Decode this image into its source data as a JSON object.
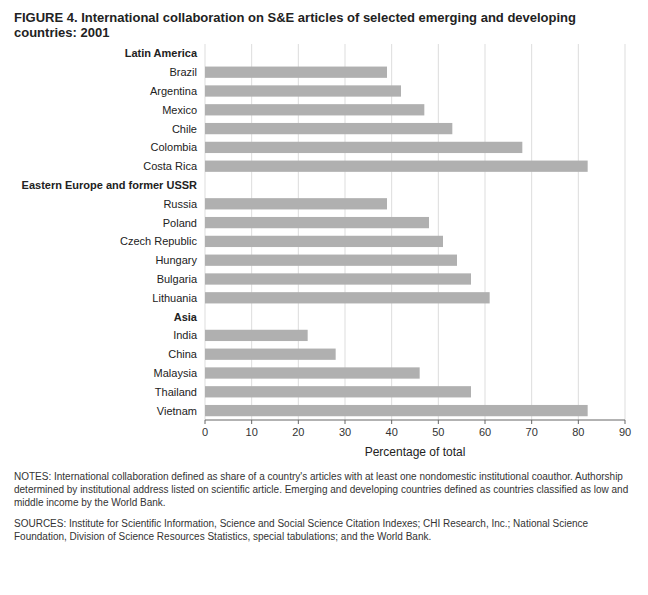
{
  "chart_data": {
    "type": "bar",
    "orientation": "horizontal",
    "title": "FIGURE 4. International collaboration on S&E articles of selected emerging and developing countries:  2001",
    "x_label": "Percentage of total",
    "categories": [
      "Latin America",
      "Brazil",
      "Argentina",
      "Mexico",
      "Chile",
      "Colombia",
      "Costa Rica",
      "Eastern Europe and former USSR",
      "Russia",
      "Poland",
      "Czech Republic",
      "Hungary",
      "Bulgaria",
      "Lithuania",
      "Asia",
      "India",
      "China",
      "Malaysia",
      "Thailand",
      "Vietnam"
    ],
    "values": [
      null,
      39,
      42,
      47,
      53,
      68,
      82,
      null,
      39,
      48,
      51,
      54,
      57,
      61,
      null,
      22,
      28,
      46,
      57,
      82
    ],
    "color": "#b0b0b0",
    "xlim": [
      0,
      90
    ],
    "xticks": [
      0,
      10,
      20,
      30,
      40,
      50,
      60,
      70,
      80,
      90
    ],
    "grid": true,
    "annotations": [
      "NOTES:  International collaboration defined as share of a country's articles with at least one nondomestic institutional coauthor. Authorship determined by institutional address listed on scientific article. Emerging and developing countries defined as countries classified as low and middle income by the World Bank.",
      "SOURCES:  Institute for Scientific Information, Science and Social Science Citation Indexes; CHI Research, Inc.; National Science Foundation, Division of Science Resources Statistics, special tabulations; and the World Bank."
    ]
  }
}
